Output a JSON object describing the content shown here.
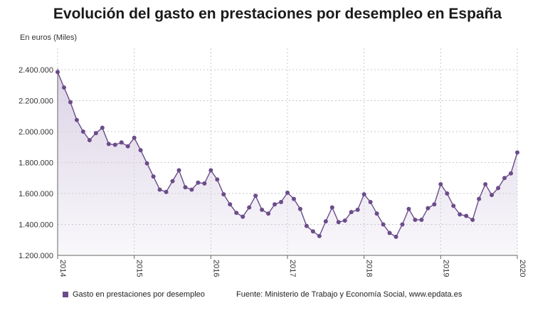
{
  "page": {
    "title": "Evolución del gasto en prestaciones por desempleo en España",
    "unit_label": "En euros (Miles)",
    "legend_label": "Gasto en prestaciones por desempleo",
    "source": "Fuente: Ministerio de Trabajo y Economía Social, www.epdata.es"
  },
  "colors": {
    "series": "#6b4c8a",
    "area": "#d8cfe3",
    "grid": "#c8c8c8",
    "axis": "#666666"
  },
  "chart_data": {
    "type": "area",
    "title": "Evolución del gasto en prestaciones por desempleo en España",
    "ylabel": "En euros (Miles)",
    "xlabel": "",
    "ylim": [
      1200000,
      2400000
    ],
    "yticks": [
      1200000,
      1400000,
      1600000,
      1800000,
      2000000,
      2200000,
      2400000
    ],
    "ytick_labels": [
      "1.200.000",
      "1.400.000",
      "1.600.000",
      "1.800.000",
      "2.000.000",
      "2.200.000",
      "2.400.000"
    ],
    "xlim": [
      2014,
      2020
    ],
    "xticks": [
      2014,
      2015,
      2016,
      2017,
      2018,
      2019,
      2020
    ],
    "xtick_labels": [
      "2014",
      "2015",
      "2016",
      "2017",
      "2018",
      "2019",
      "2020"
    ],
    "grid": true,
    "legend": "bottom-left",
    "series": [
      {
        "name": "Gasto en prestaciones por desempleo",
        "x": [
          "2014-01",
          "2014-02",
          "2014-03",
          "2014-04",
          "2014-05",
          "2014-06",
          "2014-07",
          "2014-08",
          "2014-09",
          "2014-10",
          "2014-11",
          "2014-12",
          "2015-01",
          "2015-02",
          "2015-03",
          "2015-04",
          "2015-05",
          "2015-06",
          "2015-07",
          "2015-08",
          "2015-09",
          "2015-10",
          "2015-11",
          "2015-12",
          "2016-01",
          "2016-02",
          "2016-03",
          "2016-04",
          "2016-05",
          "2016-06",
          "2016-07",
          "2016-08",
          "2016-09",
          "2016-10",
          "2016-11",
          "2016-12",
          "2017-01",
          "2017-02",
          "2017-03",
          "2017-04",
          "2017-05",
          "2017-06",
          "2017-07",
          "2017-08",
          "2017-09",
          "2017-10",
          "2017-11",
          "2017-12",
          "2018-01",
          "2018-02",
          "2018-03",
          "2018-04",
          "2018-05",
          "2018-06",
          "2018-07",
          "2018-08",
          "2018-09",
          "2018-10",
          "2018-11",
          "2018-12",
          "2019-01",
          "2019-02",
          "2019-03",
          "2019-04",
          "2019-05",
          "2019-06",
          "2019-07",
          "2019-08",
          "2019-09",
          "2019-10",
          "2019-11",
          "2019-12",
          "2020-01"
        ],
        "values": [
          2385000,
          2285000,
          2190000,
          2075000,
          2000000,
          1945000,
          1990000,
          2025000,
          1920000,
          1915000,
          1930000,
          1905000,
          1960000,
          1880000,
          1795000,
          1710000,
          1625000,
          1610000,
          1680000,
          1750000,
          1640000,
          1625000,
          1670000,
          1665000,
          1750000,
          1690000,
          1595000,
          1530000,
          1475000,
          1450000,
          1510000,
          1585000,
          1495000,
          1470000,
          1530000,
          1545000,
          1605000,
          1565000,
          1500000,
          1390000,
          1355000,
          1325000,
          1420000,
          1510000,
          1415000,
          1425000,
          1480000,
          1495000,
          1595000,
          1545000,
          1470000,
          1400000,
          1345000,
          1320000,
          1400000,
          1500000,
          1430000,
          1430000,
          1505000,
          1530000,
          1660000,
          1600000,
          1520000,
          1465000,
          1455000,
          1430000,
          1565000,
          1660000,
          1590000,
          1635000,
          1700000,
          1730000,
          1865000
        ]
      }
    ]
  }
}
